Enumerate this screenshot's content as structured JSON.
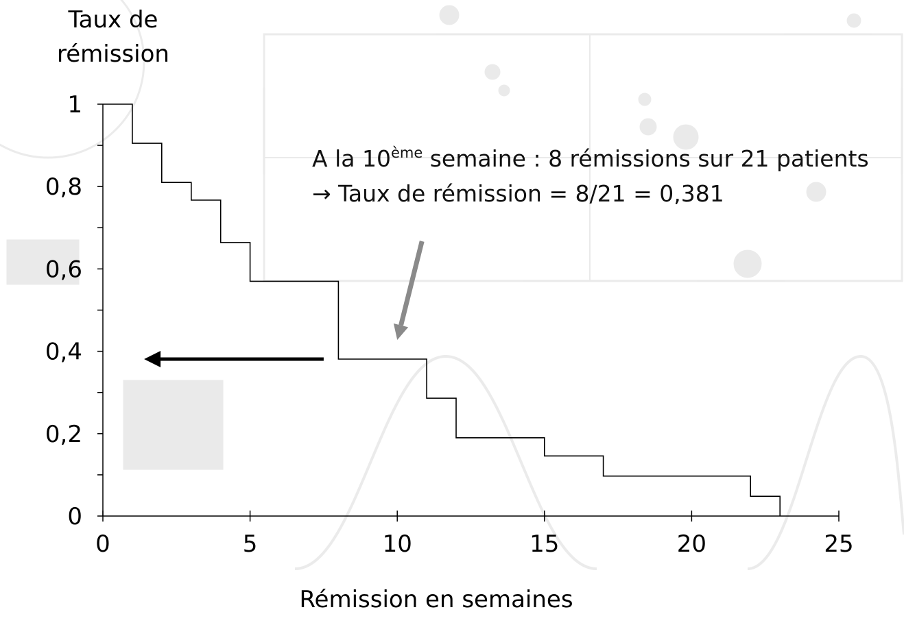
{
  "chart_data": {
    "type": "line",
    "step": true,
    "ylabel_lines": [
      "Taux de",
      "rémission"
    ],
    "xlabel": "Rémission en semaines",
    "xlim": [
      0,
      25
    ],
    "ylim": [
      0,
      1
    ],
    "x_ticks": [
      0,
      5,
      10,
      15,
      20,
      25
    ],
    "x_tick_labels": [
      "0",
      "5",
      "10",
      "15",
      "20",
      "25"
    ],
    "y_ticks": [
      0,
      0.2,
      0.4,
      0.6,
      0.8,
      1
    ],
    "y_tick_labels": [
      "0",
      "0,2",
      "0,4",
      "0,6",
      "0,8",
      "1"
    ],
    "y_minor_ticks": [
      0.1,
      0.3,
      0.5,
      0.7,
      0.9
    ],
    "x_minor_ticks": [],
    "grid": false,
    "series": [
      {
        "x": [
          0,
          1,
          1,
          2,
          2,
          3,
          3,
          4,
          4,
          5,
          5,
          8,
          8,
          11,
          11,
          12,
          12,
          15,
          15,
          17,
          17,
          22,
          22,
          23,
          23
        ],
        "y": [
          1,
          1,
          0.905,
          0.905,
          0.81,
          0.81,
          0.767,
          0.767,
          0.664,
          0.664,
          0.57,
          0.57,
          0.381,
          0.381,
          0.286,
          0.286,
          0.19,
          0.19,
          0.146,
          0.146,
          0.097,
          0.097,
          0.048,
          0.048,
          0
        ]
      }
    ],
    "annotations": {
      "line1_prefix": "A la 10",
      "line1_sup": "ème",
      "line1_suffix": " semaine : 8 rémissions sur 21 patients",
      "line2_arrow": "→",
      "line2_text": " Taux de rémission = 8/21 = 0,381",
      "pointer_target": {
        "x": 10,
        "y": 0.381
      },
      "horizontal_arrow_y": 0.381
    },
    "colors": {
      "curve": "#000000",
      "arrow_black": "#000000",
      "arrow_gray": "#8a8a8a"
    }
  }
}
